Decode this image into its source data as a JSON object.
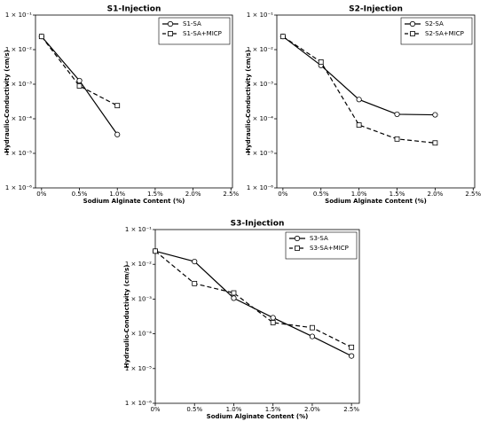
{
  "chart_data": [
    {
      "type": "line",
      "title": "S1-Injection",
      "x_label": "Sodium Alginate Content (%)",
      "y_label": "Hydraulic Conductivity (cm/s)",
      "x": [
        0,
        0.5,
        1.0
      ],
      "series": [
        {
          "name": "S1-SA",
          "color": "#000000",
          "marker": "o",
          "dashed": false,
          "values": [
            0.024,
            0.00127,
            3.5e-05
          ]
        },
        {
          "name": "S1-SA+MICP",
          "color": "#000000",
          "marker": "s",
          "dashed": true,
          "values": [
            0.024,
            0.00089,
            0.00024
          ]
        }
      ],
      "log_y": true,
      "legend": "upper-right",
      "xlim": [
        -0.08,
        2.52
      ],
      "xticks": [
        {
          "value": 0,
          "label": "0%"
        },
        {
          "value": 0.5,
          "label": "0.5%"
        },
        {
          "value": 1.0,
          "label": "1.0%"
        },
        {
          "value": 1.5,
          "label": "1.5%"
        },
        {
          "value": 2.0,
          "label": "2.0%"
        },
        {
          "value": 2.5,
          "label": "2.5%"
        }
      ],
      "ylim": [
        1e-06,
        0.1
      ],
      "yticks": [
        {
          "value": 0.1,
          "label": "1 × 10⁻¹"
        },
        {
          "value": 0.01,
          "label": "1 × 10⁻²"
        },
        {
          "value": 0.001,
          "label": "1 × 10⁻³"
        },
        {
          "value": 0.0001,
          "label": "1 × 10⁻⁴"
        },
        {
          "value": 1e-05,
          "label": "1 × 10⁻⁵"
        },
        {
          "value": 1e-06,
          "label": "1 × 10⁻⁶"
        }
      ]
    },
    {
      "type": "line",
      "title": "S2-Injection",
      "x_label": "Sodium Alginate Content (%)",
      "y_label": "Hydraulic Conductivity (cm/s)",
      "x": [
        0,
        0.5,
        1.0,
        1.5,
        2.0
      ],
      "series": [
        {
          "name": "S2-SA",
          "color": "#000000",
          "marker": "o",
          "dashed": false,
          "values": [
            0.024,
            0.0035,
            0.00036,
            0.000135,
            0.00013
          ]
        },
        {
          "name": "S2-SA+MICP",
          "color": "#000000",
          "marker": "s",
          "dashed": true,
          "values": [
            0.024,
            0.0044,
            6.6e-05,
            2.6e-05,
            2e-05
          ]
        }
      ],
      "log_y": true,
      "legend": "upper-right",
      "xlim": [
        -0.08,
        2.52
      ],
      "xticks": [
        {
          "value": 0,
          "label": "0%"
        },
        {
          "value": 0.5,
          "label": "0.5%"
        },
        {
          "value": 1.0,
          "label": "1.0%"
        },
        {
          "value": 1.5,
          "label": "1.5%"
        },
        {
          "value": 2.0,
          "label": "2.0%"
        },
        {
          "value": 2.5,
          "label": "2.5%"
        }
      ],
      "ylim": [
        1e-06,
        0.1
      ],
      "yticks": [
        {
          "value": 0.1,
          "label": "1 × 10⁻¹"
        },
        {
          "value": 0.01,
          "label": "1 × 10⁻²"
        },
        {
          "value": 0.001,
          "label": "1 × 10⁻³"
        },
        {
          "value": 0.0001,
          "label": "1 × 10⁻⁴"
        },
        {
          "value": 1e-05,
          "label": "1 × 10⁻⁵"
        },
        {
          "value": 1e-06,
          "label": "1 × 10⁻⁶"
        }
      ]
    },
    {
      "type": "line",
      "title": "S3-Injection",
      "x_label": "Sodium Alginate Content (%)",
      "y_label": "Hydraulic Conductivity (cm/s)",
      "x": [
        0,
        0.5,
        1.0,
        1.5,
        2.0,
        2.5
      ],
      "series": [
        {
          "name": "S3-SA",
          "color": "#000000",
          "marker": "o",
          "dashed": false,
          "values": [
            0.024,
            0.012,
            0.00106,
            0.00029,
            8.4e-05,
            2.3e-05
          ]
        },
        {
          "name": "S3-SA+MICP",
          "color": "#000000",
          "marker": "s",
          "dashed": true,
          "values": [
            0.024,
            0.0028,
            0.0015,
            0.00021,
            0.00015,
            4.1e-05
          ]
        }
      ],
      "log_y": true,
      "legend": "upper-right",
      "xlim": [
        0,
        2.6
      ],
      "xticks": [
        {
          "value": 0,
          "label": "0%"
        },
        {
          "value": 0.5,
          "label": "0.5%"
        },
        {
          "value": 1.0,
          "label": "1.0%"
        },
        {
          "value": 1.5,
          "label": "1.5%"
        },
        {
          "value": 2.0,
          "label": "2.0%"
        },
        {
          "value": 2.5,
          "label": "2.5%"
        }
      ],
      "ylim": [
        1e-06,
        0.1
      ],
      "yticks": [
        {
          "value": 0.1,
          "label": "1 × 10⁻¹"
        },
        {
          "value": 0.01,
          "label": "1 × 10⁻²"
        },
        {
          "value": 0.001,
          "label": "1 × 10⁻³"
        },
        {
          "value": 0.0001,
          "label": "1 × 10⁻⁴"
        },
        {
          "value": 1e-05,
          "label": "1 × 10⁻⁵"
        },
        {
          "value": 1e-06,
          "label": "1 × 10⁻⁶"
        }
      ]
    }
  ]
}
